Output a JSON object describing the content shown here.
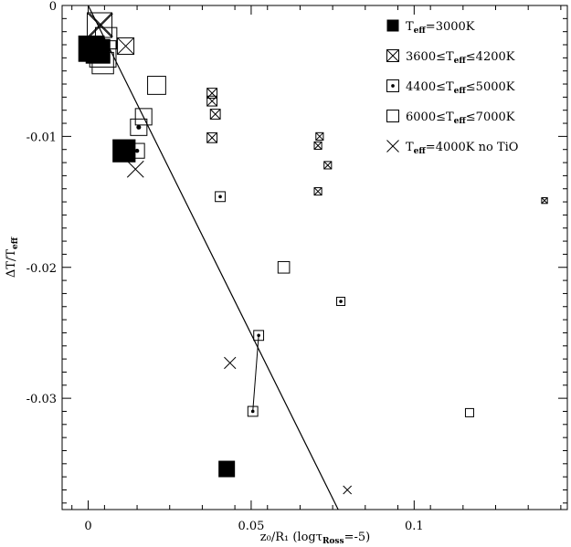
{
  "chart_data": {
    "type": "scatter",
    "title": "",
    "xlabel": "z₀/R₁ (logτ",
    "xlabel_sub": "Ross",
    "xlabel_tail": "=-5)",
    "ylabel": "ΔT/T",
    "ylabel_sub": "eff",
    "xlim": [
      -0.008,
      0.147
    ],
    "ylim": [
      -0.0385,
      0.0
    ],
    "x_ticks": [
      0,
      0.05,
      0.1
    ],
    "x_tick_labels": [
      "0",
      "0.05",
      "0.1"
    ],
    "y_ticks": [
      0,
      -0.01,
      -0.02,
      -0.03
    ],
    "y_tick_labels": [
      "0",
      "-0.01",
      "-0.02",
      "-0.03"
    ],
    "grid": false,
    "legend_position": "top-right",
    "legend": [
      {
        "marker": "filled-square",
        "pre": "T",
        "sub": "eff",
        "post": "=3000K"
      },
      {
        "marker": "crossed-square",
        "pre": "3600≤T",
        "sub": "eff",
        "post": "≤4200K"
      },
      {
        "marker": "dotted-square",
        "pre": "4400≤T",
        "sub": "eff",
        "post": "≤5000K"
      },
      {
        "marker": "open-square",
        "pre": "6000≤T",
        "sub": "eff",
        "post": "≤7000K"
      },
      {
        "marker": "cross",
        "pre": "T",
        "sub": "eff",
        "post": "=4000K no TiO"
      }
    ],
    "fit_line": {
      "x": [
        0.0,
        0.0767
      ],
      "y": [
        0.0,
        -0.0385
      ]
    },
    "connector": {
      "x": [
        0.0505,
        0.0523
      ],
      "y": [
        -0.031,
        -0.0252
      ]
    },
    "series": [
      {
        "marker": "filled-square",
        "points": [
          [
            0.001,
            -0.0033,
            1.6
          ],
          [
            0.003,
            -0.0035,
            1.5
          ],
          [
            0.011,
            -0.0111,
            1.4
          ],
          [
            0.0425,
            -0.0354,
            1.0
          ]
        ]
      },
      {
        "marker": "crossed-square",
        "points": [
          [
            0.0035,
            -0.0015,
            1.5
          ],
          [
            0.0115,
            -0.0031,
            1.0
          ],
          [
            0.038,
            -0.0067,
            0.6
          ],
          [
            0.038,
            -0.0073,
            0.6
          ],
          [
            0.039,
            -0.0083,
            0.6
          ],
          [
            0.038,
            -0.0101,
            0.6
          ],
          [
            0.071,
            -0.01,
            0.45
          ],
          [
            0.0705,
            -0.0107,
            0.45
          ],
          [
            0.0735,
            -0.0122,
            0.45
          ],
          [
            0.0705,
            -0.0142,
            0.45
          ],
          [
            0.14,
            -0.0149,
            0.35
          ]
        ]
      },
      {
        "marker": "dotted-square",
        "points": [
          [
            0.0155,
            -0.0093,
            1.0
          ],
          [
            0.015,
            -0.0111,
            0.9
          ],
          [
            0.0405,
            -0.0146,
            0.6
          ],
          [
            0.0523,
            -0.0252,
            0.6
          ],
          [
            0.0505,
            -0.031,
            0.6
          ],
          [
            0.0775,
            -0.0226,
            0.5
          ]
        ]
      },
      {
        "marker": "open-square",
        "points": [
          [
            0.0045,
            -0.0037,
            1.6
          ],
          [
            0.0055,
            -0.0025,
            1.3
          ],
          [
            0.0045,
            -0.0044,
            1.3
          ],
          [
            0.017,
            -0.0085,
            1.0
          ],
          [
            0.021,
            -0.0061,
            1.1
          ],
          [
            0.06,
            -0.02,
            0.7
          ],
          [
            0.117,
            -0.0311,
            0.5
          ]
        ]
      },
      {
        "marker": "cross",
        "points": [
          [
            0.004,
            -0.0015,
            1.4
          ],
          [
            0.0145,
            -0.0125,
            1.0
          ],
          [
            0.0435,
            -0.0273,
            0.7
          ],
          [
            0.0795,
            -0.037,
            0.5
          ]
        ]
      }
    ]
  }
}
